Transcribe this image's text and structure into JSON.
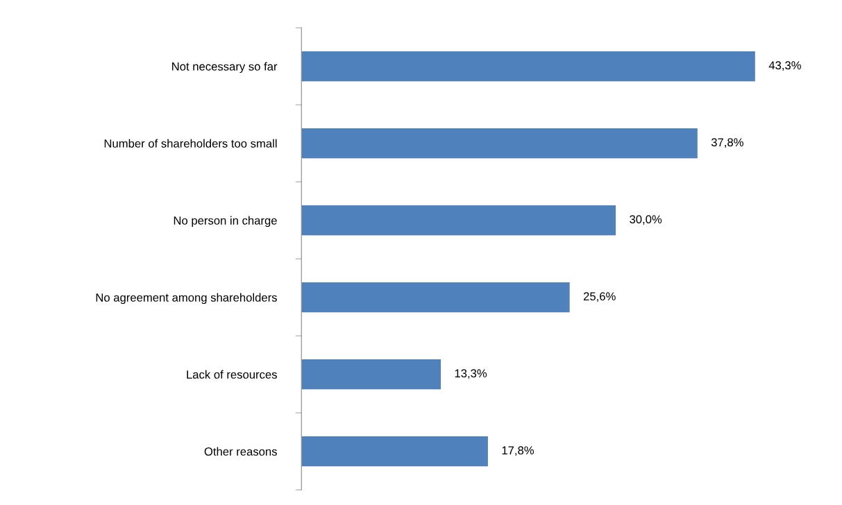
{
  "chart_data": {
    "type": "bar",
    "orientation": "horizontal",
    "categories": [
      "Not necessary so far",
      "Number of shareholders too small",
      "No person in charge",
      "No agreement among shareholders",
      "Lack of resources",
      "Other reasons"
    ],
    "values": [
      43.3,
      37.8,
      30.0,
      25.6,
      13.3,
      17.8
    ],
    "value_labels": [
      "43,3%",
      "37,8%",
      "30,0%",
      "25,6%",
      "13,3%",
      "17,8%"
    ],
    "color": "#4f81bd",
    "tick_labels": "y",
    "grid": false,
    "legend": false
  }
}
